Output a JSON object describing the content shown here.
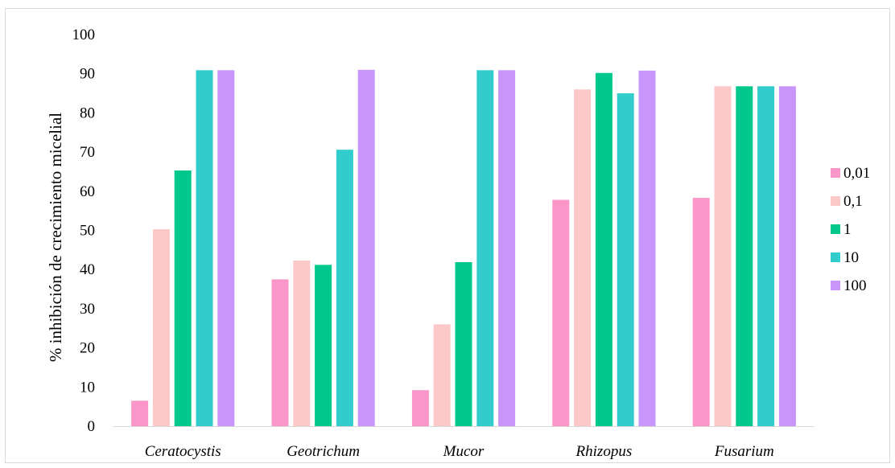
{
  "chart_data": {
    "type": "bar",
    "ylabel": "% inhibición de crecimiento micelial",
    "xlabel": "",
    "ylim": [
      0,
      100
    ],
    "yticks": [
      0,
      10,
      20,
      30,
      40,
      50,
      60,
      70,
      80,
      90,
      100
    ],
    "grid": false,
    "legend_position": "right",
    "categories": [
      "Ceratocystis",
      "Geotrichum",
      "Mucor",
      "Rhizopus",
      "Fusarium"
    ],
    "series": [
      {
        "name": "0,01",
        "color": "#fa96c8",
        "values": [
          6.5,
          37.5,
          9.2,
          57.8,
          58.3
        ]
      },
      {
        "name": "0,1",
        "color": "#fcc8c8",
        "values": [
          50.3,
          42.3,
          26.0,
          86.0,
          86.8
        ]
      },
      {
        "name": "1",
        "color": "#00c88c",
        "values": [
          65.3,
          41.2,
          41.9,
          90.2,
          86.8
        ]
      },
      {
        "name": "10",
        "color": "#32cccc",
        "values": [
          90.9,
          70.6,
          90.9,
          85.0,
          86.8
        ]
      },
      {
        "name": "100",
        "color": "#c896fa",
        "values": [
          90.9,
          91.0,
          90.9,
          90.8,
          86.8
        ]
      }
    ]
  }
}
